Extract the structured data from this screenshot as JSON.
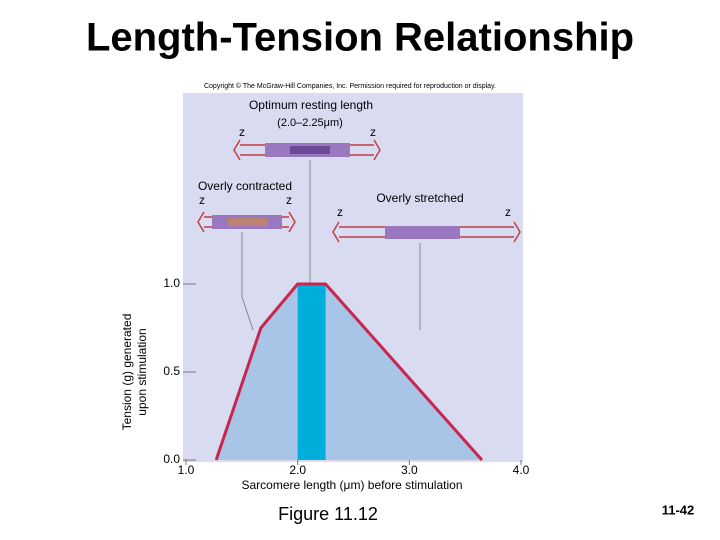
{
  "chart_data": {
    "type": "line",
    "title": "Length-Tension Relationship",
    "copyright": "Copyright © The McGraw-Hill Companies, Inc. Permission required for reproduction or display.",
    "annotations": {
      "optimum": "Optimum resting length",
      "optimum_range_label": "(2.0–2.25μm)",
      "contracted": "Overly contracted",
      "stretched": "Overly stretched",
      "z_labels": [
        "z",
        "z",
        "z",
        "z",
        "z",
        "z"
      ]
    },
    "y_label_lines": [
      "Tension (g) generated",
      "upon stimulation"
    ],
    "x_label": "Sarcomere length (μm) before stimulation",
    "figure_label": "Figure 11.12",
    "slide_number": "11-42",
    "x": [
      1.27,
      1.67,
      2.0,
      2.25,
      3.65
    ],
    "series": [
      {
        "color": "#c8264f",
        "fill": "#a8c4e6",
        "values": [
          0,
          0.75,
          1.0,
          1.0,
          0
        ]
      }
    ],
    "optimum_range": [
      2.0,
      2.25
    ],
    "optimum_color": "#00aedc",
    "xlim": [
      1.0,
      4.0
    ],
    "ylim": [
      0,
      1.0
    ],
    "xticks": [
      {
        "value": 1.0,
        "label": "1.0"
      },
      {
        "value": 2.0,
        "label": "2.0"
      },
      {
        "value": 3.0,
        "label": "3.0"
      },
      {
        "value": 4.0,
        "label": "4.0"
      }
    ],
    "yticks": [
      {
        "value": 0,
        "label": "0.0"
      },
      {
        "value": 0.5,
        "label": "0.5"
      },
      {
        "value": 1.0,
        "label": "1.0"
      }
    ]
  }
}
